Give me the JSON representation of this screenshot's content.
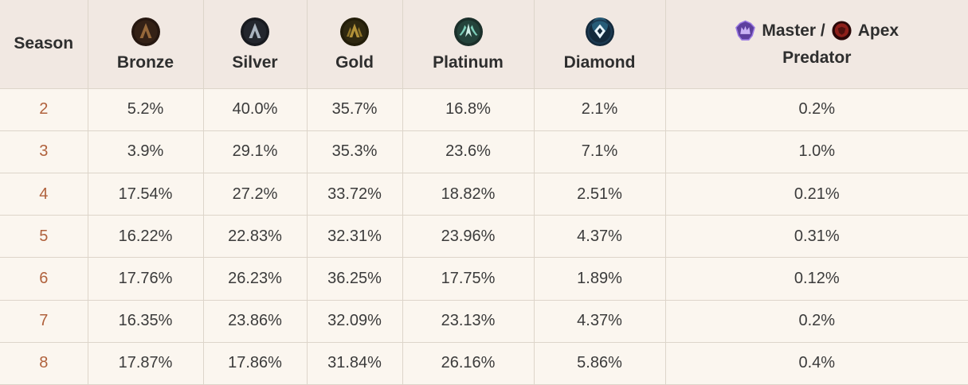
{
  "colors": {
    "page_bg": "#f6f0e8",
    "header_bg": "#f1e8e2",
    "row_bg": "#fbf6ef",
    "border": "#ddd5ca",
    "text": "#3b3b3b",
    "header_text": "#2e2e2e",
    "season_number": "#b0613c"
  },
  "table": {
    "header": {
      "season": "Season",
      "ranks": [
        "Bronze",
        "Silver",
        "Gold",
        "Platinum",
        "Diamond"
      ],
      "master": {
        "part1": "Master /",
        "part2": "Apex",
        "part3": "Predator"
      }
    },
    "icons": [
      "bronze-rank-icon",
      "silver-rank-icon",
      "gold-rank-icon",
      "platinum-rank-icon",
      "diamond-rank-icon",
      "master-rank-icon",
      "predator-rank-icon"
    ]
  },
  "chart_data": {
    "type": "table",
    "columns": [
      "Season",
      "Bronze",
      "Silver",
      "Gold",
      "Platinum",
      "Diamond",
      "Master / Apex Predator"
    ],
    "rows": [
      {
        "season": "2",
        "values": [
          "5.2%",
          "40.0%",
          "35.7%",
          "16.8%",
          "2.1%",
          "0.2%"
        ]
      },
      {
        "season": "3",
        "values": [
          "3.9%",
          "29.1%",
          "35.3%",
          "23.6%",
          "7.1%",
          "1.0%"
        ]
      },
      {
        "season": "4",
        "values": [
          "17.54%",
          "27.2%",
          "33.72%",
          "18.82%",
          "2.51%",
          "0.21%"
        ]
      },
      {
        "season": "5",
        "values": [
          "16.22%",
          "22.83%",
          "32.31%",
          "23.96%",
          "4.37%",
          "0.31%"
        ]
      },
      {
        "season": "6",
        "values": [
          "17.76%",
          "26.23%",
          "36.25%",
          "17.75%",
          "1.89%",
          "0.12%"
        ]
      },
      {
        "season": "7",
        "values": [
          "16.35%",
          "23.86%",
          "32.09%",
          "23.13%",
          "4.37%",
          "0.2%"
        ]
      },
      {
        "season": "8",
        "values": [
          "17.87%",
          "17.86%",
          "31.84%",
          "26.16%",
          "5.86%",
          "0.4%"
        ]
      }
    ]
  }
}
